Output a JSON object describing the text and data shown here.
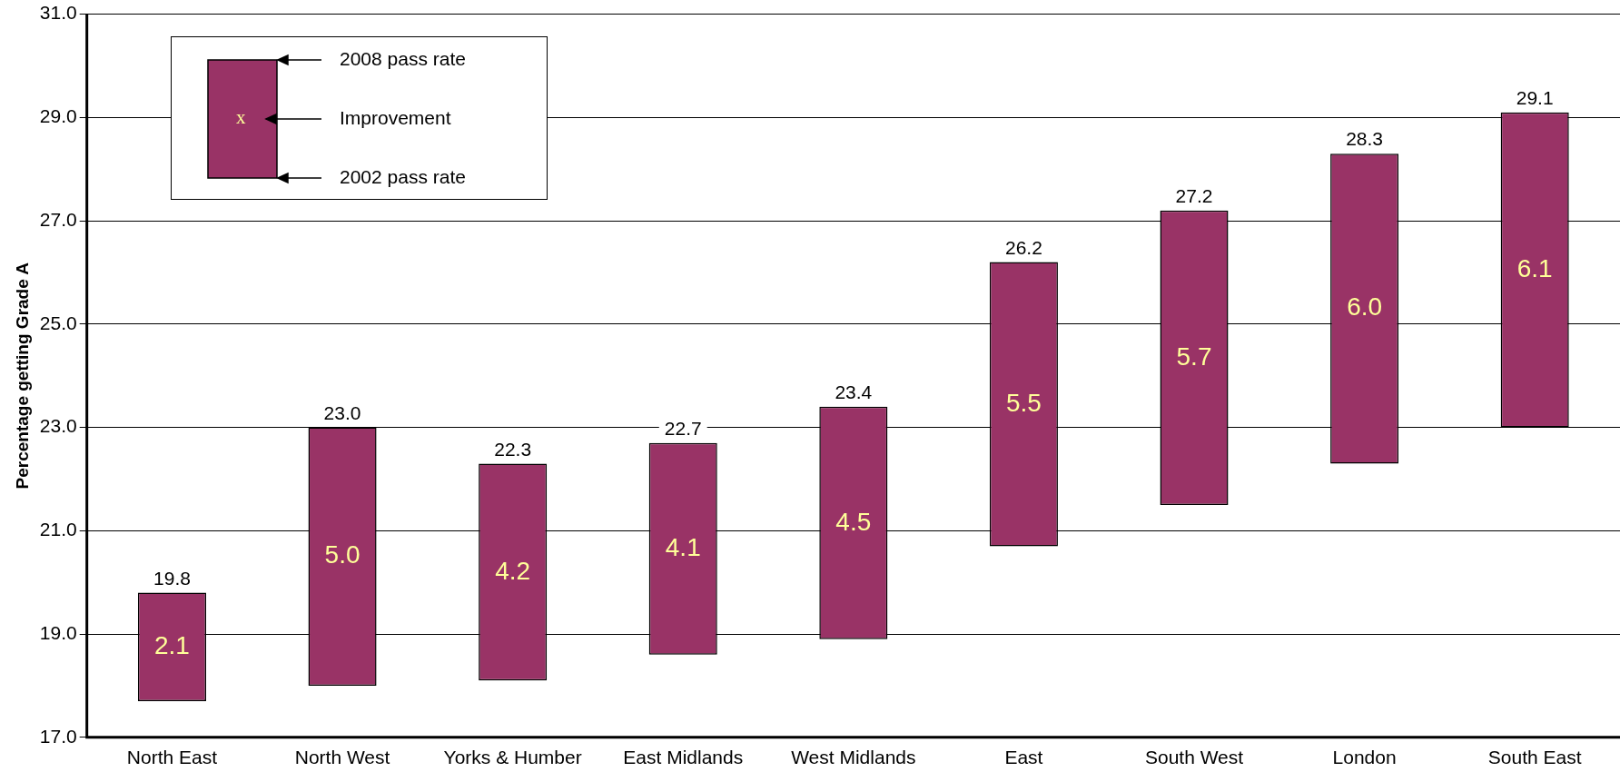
{
  "chart_data": {
    "type": "bar",
    "ylabel": "Percentage getting Grade A",
    "categories": [
      "North East",
      "North West",
      "Yorks & Humber",
      "East Midlands",
      "West Midlands",
      "East",
      "South West",
      "London",
      "South East"
    ],
    "base": [
      17.7,
      18.0,
      18.1,
      18.6,
      18.9,
      20.7,
      21.5,
      22.3,
      23.0
    ],
    "values": [
      2.1,
      5.0,
      4.2,
      4.1,
      4.5,
      5.5,
      5.7,
      6.0,
      6.1
    ],
    "value_labels": [
      "2.1",
      "5.0",
      "4.2",
      "4.1",
      "4.5",
      "5.5",
      "5.7",
      "6.0",
      "6.1"
    ],
    "color": "#993366",
    "ylim": [
      17,
      31
    ],
    "yticks": [
      {
        "value": 17,
        "label": "17.0"
      },
      {
        "value": 19,
        "label": "19.0"
      },
      {
        "value": 21,
        "label": "21.0"
      },
      {
        "value": 23,
        "label": "23.0"
      },
      {
        "value": 25,
        "label": "25.0"
      },
      {
        "value": 27,
        "label": "27.0"
      },
      {
        "value": 29,
        "label": "29.0"
      },
      {
        "value": 31,
        "label": "31.0"
      }
    ],
    "grid": "y",
    "annotations": [
      "2008 pass rate",
      "Improvement",
      "2002 pass rate",
      "x",
      {
        "text": "19.8",
        "x": "North East",
        "y": 19.8
      },
      {
        "text": "23.0",
        "x": "North West",
        "y": 23.0
      },
      {
        "text": "22.3",
        "x": "Yorks & Humber",
        "y": 22.3
      },
      {
        "text": "22.7",
        "x": "East Midlands",
        "y": 22.7
      },
      {
        "text": "23.4",
        "x": "West Midlands",
        "y": 23.4
      },
      {
        "text": "26.2",
        "x": "East",
        "y": 26.2
      },
      {
        "text": "27.2",
        "x": "South West",
        "y": 27.2
      },
      {
        "text": "28.3",
        "x": "London",
        "y": 28.3
      },
      {
        "text": "29.1",
        "x": "South East",
        "y": 29.1
      }
    ]
  }
}
